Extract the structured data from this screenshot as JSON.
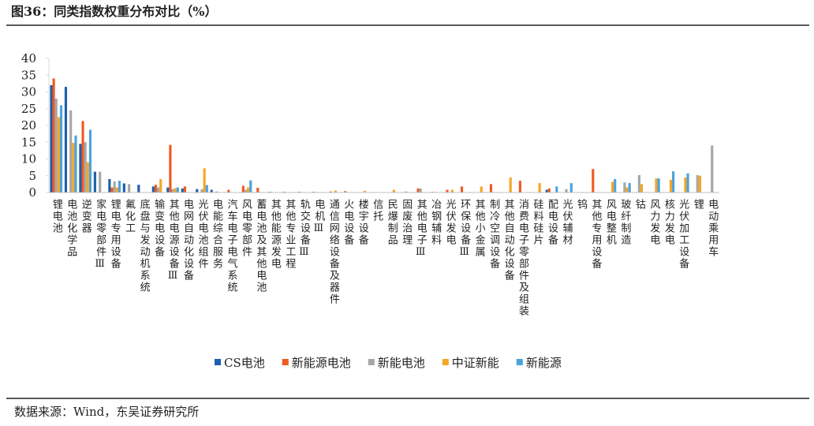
{
  "chart_data": {
    "type": "bar",
    "title": "图36：同类指数权重分布对比（%）",
    "source": "数据来源：Wind，东吴证券研究所",
    "categories": [
      "锂电池",
      "电池化学品",
      "逆变器",
      "家电零部件Ⅲ",
      "锂电专用设备",
      "氟化工",
      "底盘与发动机系统",
      "输变电设备",
      "其他电源设备Ⅲ",
      "电网自动化设备",
      "光伏电池组件",
      "电能综合服务",
      "汽车电子电气系统",
      "风电零部件",
      "蓄电池及其他电池",
      "其他能源发电",
      "其他专业工程",
      "轨交设备Ⅲ",
      "电机Ⅲ",
      "通信网络设备及器件",
      "火电设备",
      "楼宇设备",
      "信托",
      "民爆制品",
      "固废治理",
      "其他电子Ⅲ",
      "冶钢辅料",
      "光伏发电",
      "环保设备Ⅲ",
      "其他小金属",
      "制冷空调设备",
      "其他自动化设备",
      "消费电子零部件及组装",
      "硅料硅片",
      "配电设备",
      "光伏辅材",
      "钨",
      "其他专用设备",
      "风电整机",
      "玻纤制造",
      "钴",
      "风力发电",
      "核力发电",
      "光伏加工设备",
      "锂",
      "电动乘用车"
    ],
    "series": [
      {
        "name": "CS电池",
        "color": "#1f5fa8",
        "values": [
          32,
          31.5,
          14.5,
          6.2,
          4,
          2.7,
          2.3,
          1.8,
          1.5,
          1.2,
          1,
          0.8,
          0,
          0,
          0,
          0.2,
          0.2,
          0.2,
          0.2,
          0,
          0,
          0,
          0.1,
          0,
          0,
          0,
          0,
          0,
          0,
          0,
          0,
          0,
          0,
          0,
          0.8,
          0,
          0,
          0,
          0,
          0,
          0,
          0,
          0,
          0,
          0,
          0
        ]
      },
      {
        "name": "新能源电池",
        "color": "#f05a22",
        "values": [
          34,
          0,
          21.3,
          0,
          1.5,
          0,
          0,
          2.3,
          14.2,
          1.8,
          0,
          0,
          0.8,
          2,
          1.4,
          0,
          0,
          0,
          0,
          0.3,
          0.4,
          0,
          0,
          0,
          0,
          1.2,
          0.2,
          0.8,
          1.8,
          0,
          2.5,
          0,
          3.5,
          0,
          1.2,
          0,
          0,
          7,
          0,
          0,
          0,
          0,
          0,
          0,
          0,
          0
        ]
      },
      {
        "name": "新能电池",
        "color": "#a6a6a6",
        "values": [
          28,
          24.5,
          15,
          6.2,
          3.3,
          2.5,
          0,
          1.5,
          1,
          0,
          1,
          0.3,
          0,
          0.8,
          0,
          0,
          0,
          0,
          0,
          0,
          0,
          0,
          0,
          0,
          0.3,
          1.2,
          0,
          0,
          0,
          0,
          0,
          0,
          0,
          0,
          0,
          1,
          0,
          0,
          0,
          3,
          5.2,
          0,
          0,
          0,
          5.2,
          14
        ]
      },
      {
        "name": "中证新能",
        "color": "#f5a623",
        "values": [
          22.5,
          14.8,
          9,
          0,
          1.5,
          0,
          0,
          4,
          1.3,
          0,
          7.2,
          0,
          0,
          1.5,
          0,
          0,
          0,
          0,
          0,
          0.6,
          0,
          0.5,
          0,
          0.8,
          0,
          0,
          0,
          0.8,
          0,
          1.8,
          0,
          4.5,
          0,
          2.8,
          0,
          0,
          0,
          0,
          3.2,
          1.5,
          2.5,
          4.2,
          3.8,
          4.5,
          5,
          0
        ]
      },
      {
        "name": "新能源",
        "color": "#4aa3df",
        "values": [
          26,
          17,
          18.7,
          0,
          3.5,
          0,
          0,
          0,
          1.5,
          0,
          2.2,
          0,
          0,
          3.6,
          0,
          0,
          0,
          0,
          0,
          0,
          0,
          0,
          0,
          0,
          0,
          0,
          0,
          0,
          0,
          0,
          0,
          0,
          0,
          0,
          1.8,
          2.8,
          0,
          0,
          4,
          2.8,
          0,
          4.2,
          6.3,
          5.7,
          0,
          0
        ]
      }
    ],
    "ylim": [
      0,
      40
    ],
    "yticks": [
      0,
      5,
      10,
      15,
      20,
      25,
      30,
      35,
      40
    ]
  }
}
